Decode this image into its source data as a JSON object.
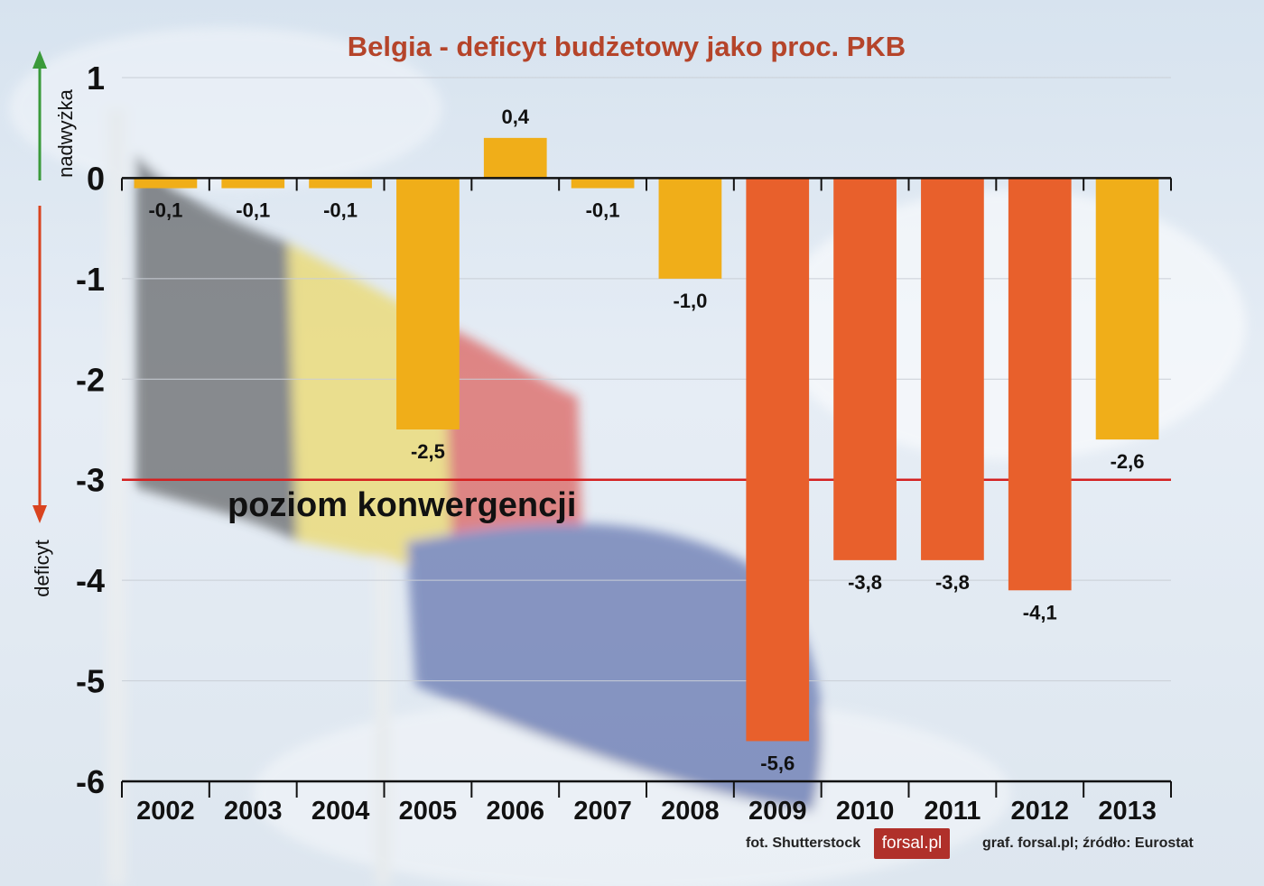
{
  "chart_data": {
    "type": "bar",
    "title": "Belgia - deficyt budżetowy jako proc. PKB",
    "categories": [
      "2002",
      "2003",
      "2004",
      "2005",
      "2006",
      "2007",
      "2008",
      "2009",
      "2010",
      "2011",
      "2012",
      "2013"
    ],
    "values": [
      -0.1,
      -0.1,
      -0.1,
      -2.5,
      0.4,
      -0.1,
      -1.0,
      -5.6,
      -3.8,
      -3.8,
      -4.1,
      -2.6
    ],
    "value_labels": [
      "-0,1",
      "-0,1",
      "-0,1",
      "-2,5",
      "0,4",
      "-0,1",
      "-1,0",
      "-5,6",
      "-3,8",
      "-3,8",
      "-4,1",
      "-2,6"
    ],
    "yticks": [
      1,
      0,
      -1,
      -2,
      -3,
      -4,
      -5,
      -6
    ],
    "ytick_labels": [
      "1",
      "0",
      "-1",
      "-2",
      "-3",
      "-4",
      "-5",
      "-6"
    ],
    "ylim": [
      -6,
      1
    ],
    "grid": true,
    "reference_line": {
      "value": -3,
      "label": "poziom konwergencji",
      "color": "#d42020"
    },
    "side_labels": {
      "up": "nadwyżka",
      "down": "deficyt"
    },
    "colors": {
      "normal": "#f0ae19",
      "over_limit": "#e8602c",
      "title": "#b5442a",
      "arrow_up": "#3a9a3a",
      "arrow_down": "#d9431f",
      "tick_highlight": "#d42020"
    }
  },
  "credits": {
    "photo": "fot. Shutterstock",
    "logo": "forsal.pl",
    "source": "graf. forsal.pl;  źródło: Eurostat"
  }
}
